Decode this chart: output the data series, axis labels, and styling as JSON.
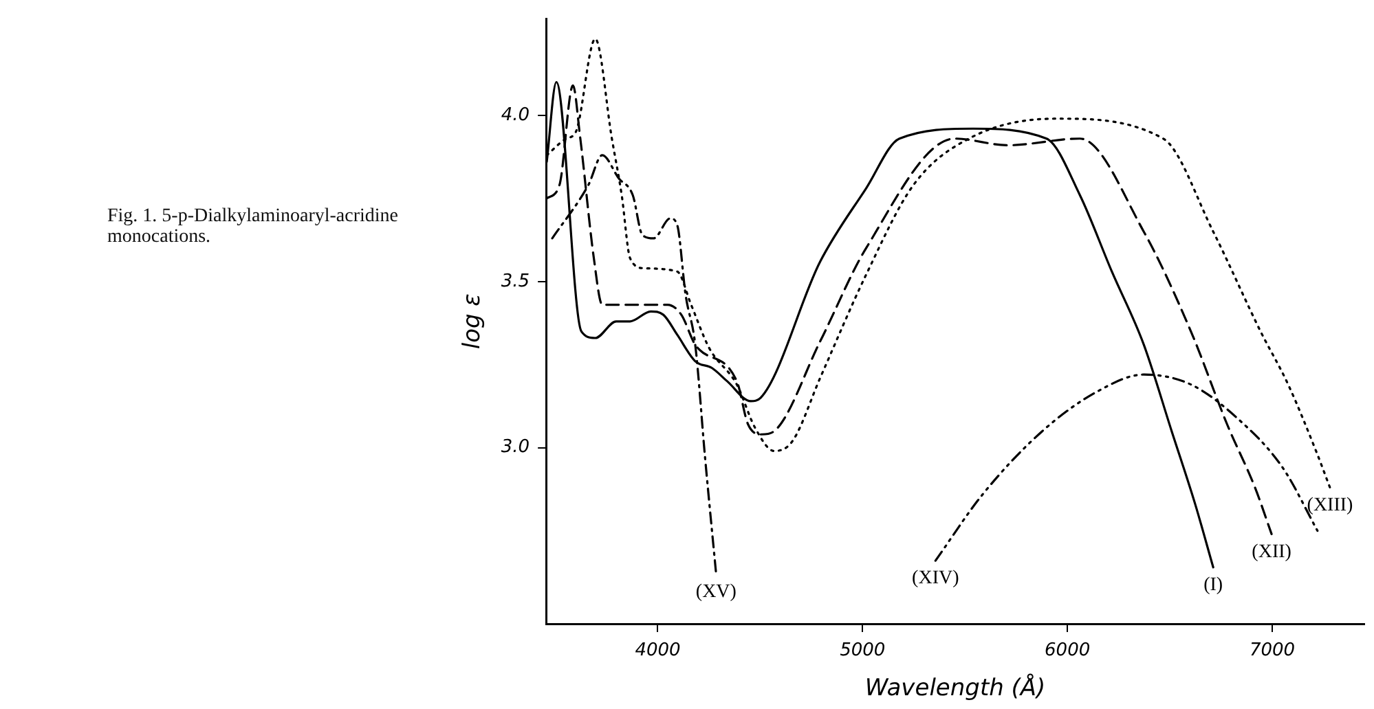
{
  "chart_data": {
    "type": "line",
    "title": "Fig. 1.  5-p-Dialkylaminoaryl-acridine monocations.",
    "xlabel": "Wavelength (Å)",
    "ylabel": "log ε",
    "xlim": [
      3455,
      7450
    ],
    "ylim": [
      2.47,
      4.29
    ],
    "xticks": [
      4000,
      5000,
      6000,
      7000
    ],
    "yticks": [
      {
        "value": 3,
        "label": "3.0"
      },
      {
        "value": 3.5,
        "label": "3.5"
      },
      {
        "value": 4,
        "label": "4.0"
      }
    ],
    "grid": false,
    "legend": false,
    "marker": "none",
    "series": [
      {
        "name": "(I)",
        "color": "#000000",
        "line_style": "solid",
        "x": [
          3458,
          3505,
          3627,
          3695,
          3797,
          3865,
          3966,
          4027,
          4095,
          4183,
          4264,
          4339,
          4454,
          4502,
          4793,
          5017,
          5180,
          5539,
          5898,
          6061,
          6217,
          6373,
          6509,
          6624,
          6712
        ],
        "values": [
          3.86,
          4.1,
          3.35,
          3.33,
          3.38,
          3.38,
          3.41,
          3.4,
          3.34,
          3.26,
          3.24,
          3.2,
          3.14,
          3.15,
          3.56,
          3.78,
          3.93,
          3.96,
          3.93,
          3.76,
          3.53,
          3.31,
          3.05,
          2.83,
          2.64
        ]
      },
      {
        "name": "(XII)",
        "color": "#000000",
        "line_style": "dashed",
        "x": [
          3458,
          3520,
          3586,
          3620,
          3688,
          3729,
          3824,
          4047,
          4115,
          4183,
          4386,
          4441,
          4508,
          4569,
          4793,
          5017,
          5451,
          5709,
          6061,
          6373,
          6603,
          6780,
          6916,
          6997
        ],
        "values": [
          3.75,
          3.79,
          4.09,
          3.94,
          3.57,
          3.43,
          3.43,
          3.43,
          3.4,
          3.31,
          3.2,
          3.07,
          3.04,
          3.05,
          3.32,
          3.6,
          3.93,
          3.91,
          3.93,
          3.65,
          3.35,
          3.07,
          2.88,
          2.74
        ]
      },
      {
        "name": "(XIII)",
        "color": "#000000",
        "line_style": "dotted",
        "x": [
          3458,
          3553,
          3600,
          3695,
          3776,
          3824,
          3865,
          3932,
          4095,
          4163,
          4251,
          4386,
          4475,
          4569,
          4658,
          4793,
          5017,
          5248,
          5519,
          5946,
          6468,
          6712,
          6943,
          7078,
          7214,
          7282
        ],
        "values": [
          3.88,
          3.93,
          3.95,
          4.23,
          3.93,
          3.76,
          3.57,
          3.54,
          3.53,
          3.43,
          3.3,
          3.19,
          3.06,
          2.99,
          3.02,
          3.21,
          3.52,
          3.79,
          3.93,
          3.99,
          3.93,
          3.65,
          3.35,
          3.19,
          2.99,
          2.88
        ]
      },
      {
        "name": "(XIV)",
        "color": "#000000",
        "line_style": "dashdotdot",
        "x": [
          5356,
          5587,
          5878,
          6149,
          6373,
          6603,
          6827,
          7051,
          7221
        ],
        "values": [
          2.66,
          2.86,
          3.05,
          3.17,
          3.22,
          3.19,
          3.09,
          2.94,
          2.75
        ]
      },
      {
        "name": "(XV)",
        "color": "#000000",
        "line_style": "dashdot",
        "x": [
          3485,
          3661,
          3729,
          3810,
          3878,
          3925,
          3980,
          4061,
          4095,
          4136,
          4183,
          4231,
          4285
        ],
        "values": [
          3.63,
          3.79,
          3.88,
          3.81,
          3.76,
          3.64,
          3.63,
          3.69,
          3.67,
          3.46,
          3.31,
          2.97,
          2.62
        ]
      }
    ]
  }
}
